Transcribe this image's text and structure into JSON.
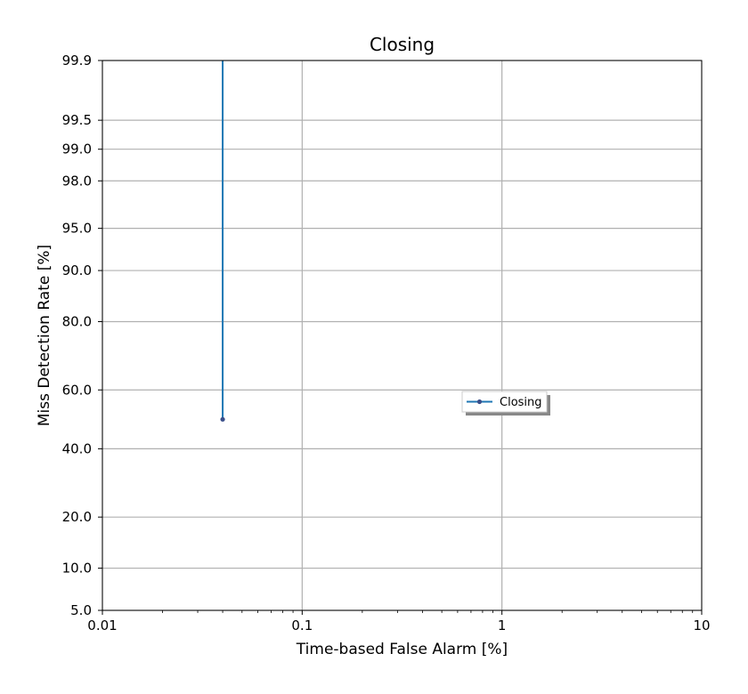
{
  "chart_data": {
    "type": "line",
    "title": "Closing",
    "xlabel": "Time-based False Alarm [%]",
    "ylabel": "Miss Detection Rate [%]",
    "x_scale": "log",
    "y_scale": "normal-probability",
    "xlim": [
      0.01,
      10
    ],
    "ylim": [
      5.0,
      99.9
    ],
    "x_ticks": [
      {
        "value": 0.01,
        "label": "0.01"
      },
      {
        "value": 0.1,
        "label": "0.1"
      },
      {
        "value": 1,
        "label": "1"
      },
      {
        "value": 10,
        "label": "10"
      }
    ],
    "y_ticks": [
      {
        "value": 5.0,
        "label": "5.0"
      },
      {
        "value": 10.0,
        "label": "10.0"
      },
      {
        "value": 20.0,
        "label": "20.0"
      },
      {
        "value": 40.0,
        "label": "40.0"
      },
      {
        "value": 60.0,
        "label": "60.0"
      },
      {
        "value": 80.0,
        "label": "80.0"
      },
      {
        "value": 90.0,
        "label": "90.0"
      },
      {
        "value": 95.0,
        "label": "95.0"
      },
      {
        "value": 98.0,
        "label": "98.0"
      },
      {
        "value": 99.0,
        "label": "99.0"
      },
      {
        "value": 99.5,
        "label": "99.5"
      },
      {
        "value": 99.9,
        "label": "99.9"
      }
    ],
    "grid": true,
    "legend_position": "center-right",
    "series": [
      {
        "name": "Closing",
        "color": "#1f77b4",
        "marker_color": "#3a4f8a",
        "points": [
          {
            "x": 0.04,
            "y": 50.0
          },
          {
            "x": 0.04,
            "y": 99.9
          }
        ]
      }
    ]
  }
}
